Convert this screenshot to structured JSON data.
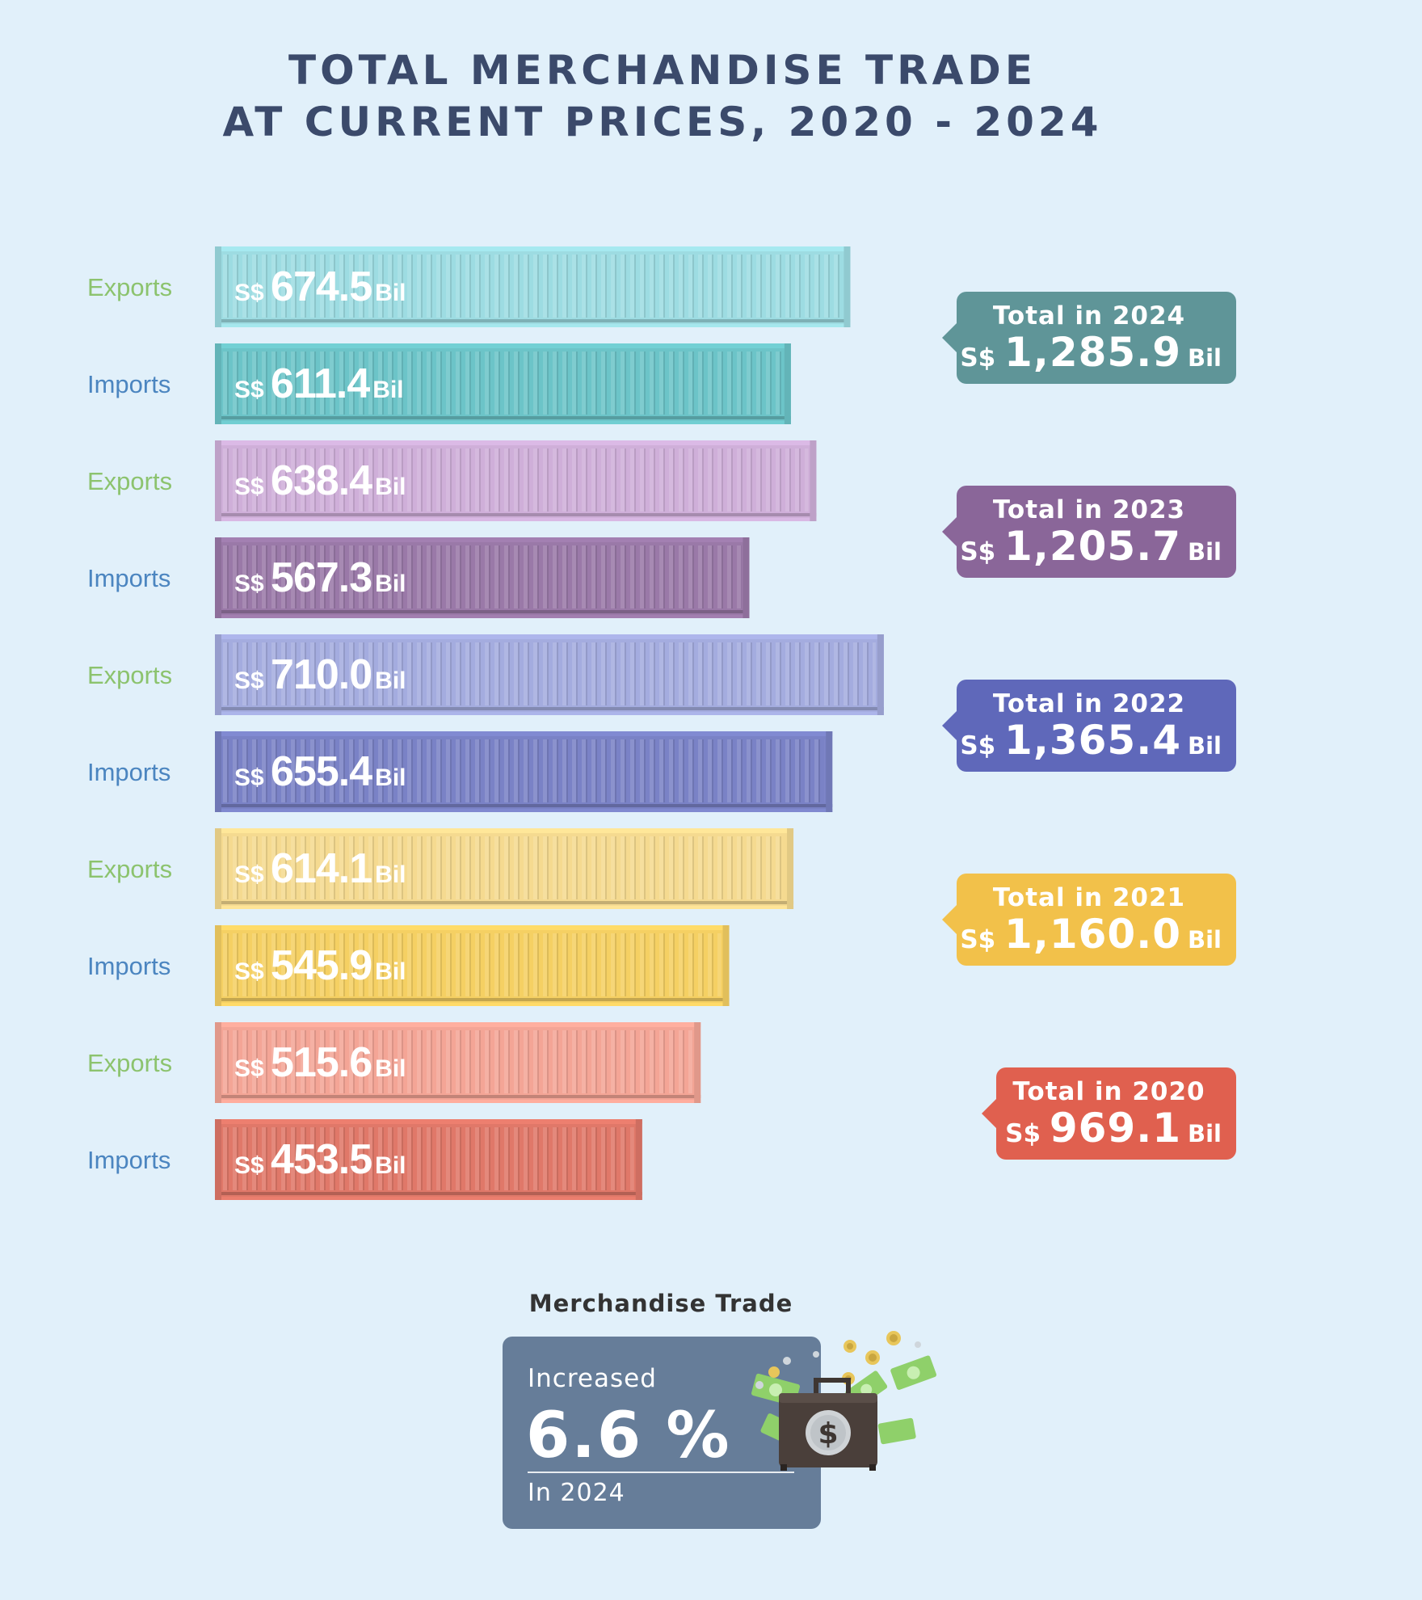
{
  "chart_data": {
    "type": "bar",
    "title_lines": [
      "TOTAL MERCHANDISE TRADE",
      "AT CURRENT PRICES, 2020 - 2024"
    ],
    "currency": "S$",
    "unit": "Bil",
    "rows": [
      {
        "label": "Exports",
        "value": 674.5,
        "value_text": "674.5",
        "color": "#9ddce2",
        "group": 0
      },
      {
        "label": "Imports",
        "value": 611.4,
        "value_text": "611.4",
        "color": "#6cc4c8",
        "group": 0
      },
      {
        "label": "Exports",
        "value": 638.4,
        "value_text": "638.4",
        "color": "#cfafd9",
        "group": 1
      },
      {
        "label": "Imports",
        "value": 567.3,
        "value_text": "567.3",
        "color": "#9a79a8",
        "group": 1
      },
      {
        "label": "Exports",
        "value": 710.0,
        "value_text": "710.0",
        "color": "#a4acdf",
        "group": 2
      },
      {
        "label": "Imports",
        "value": 655.4,
        "value_text": "655.4",
        "color": "#7a82c6",
        "group": 2
      },
      {
        "label": "Exports",
        "value": 614.1,
        "value_text": "614.1",
        "color": "#f5da90",
        "group": 3
      },
      {
        "label": "Imports",
        "value": 545.9,
        "value_text": "545.9",
        "color": "#f5d063",
        "group": 3
      },
      {
        "label": "Exports",
        "value": 515.6,
        "value_text": "515.6",
        "color": "#f4a596",
        "group": 4
      },
      {
        "label": "Imports",
        "value": 453.5,
        "value_text": "453.5",
        "color": "#e07869",
        "group": 4
      }
    ],
    "totals": [
      {
        "label": "Total in 2024",
        "value": 1285.9,
        "value_text": "1,285.9",
        "color": "#5f9598"
      },
      {
        "label": "Total in 2023",
        "value": 1205.7,
        "value_text": "1,205.7",
        "color": "#8a6699"
      },
      {
        "label": "Total in 2022",
        "value": 1365.4,
        "value_text": "1,365.4",
        "color": "#5f68ba"
      },
      {
        "label": "Total in 2021",
        "value": 1160.0,
        "value_text": "1,160.0",
        "color": "#f2c14a"
      },
      {
        "label": "Total in 2020",
        "value": 969.1,
        "value_text": "969.1",
        "color": "#e0604f"
      }
    ]
  },
  "summary": {
    "title": "Merchandise Trade",
    "label": "Increased",
    "value": "6.6 %",
    "footer": "In 2024",
    "card_color": "#667d99",
    "icon": "money-briefcase-icon"
  }
}
